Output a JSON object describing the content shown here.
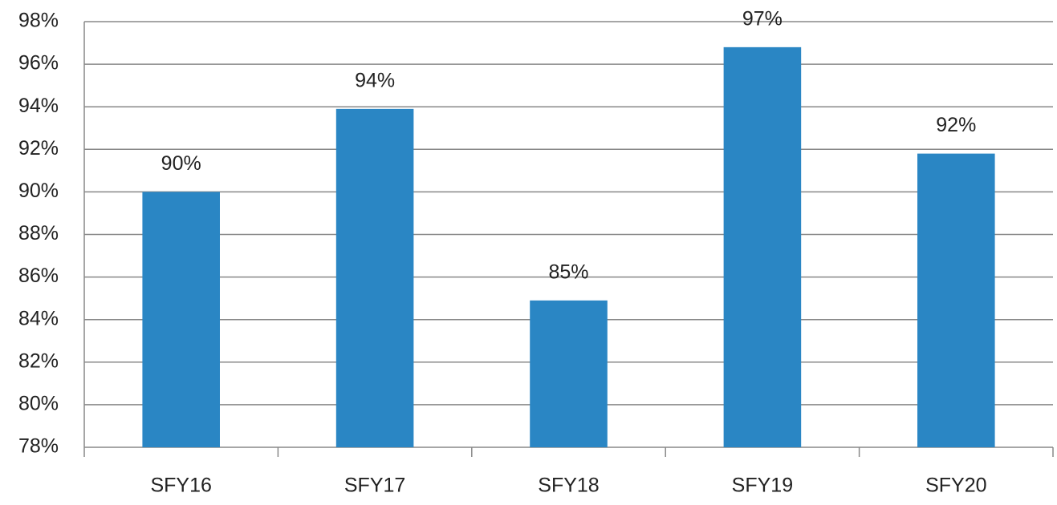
{
  "chart_data": {
    "type": "bar",
    "categories": [
      "SFY16",
      "SFY17",
      "SFY18",
      "SFY19",
      "SFY20"
    ],
    "values": [
      90,
      93.9,
      84.9,
      96.8,
      91.8
    ],
    "value_labels": [
      "90%",
      "94%",
      "85%",
      "97%",
      "92%"
    ],
    "color": "#2a86c4",
    "ylim": [
      78,
      98
    ],
    "yticks": [
      {
        "value": 78,
        "label": "78%"
      },
      {
        "value": 80,
        "label": "80%"
      },
      {
        "value": 82,
        "label": "82%"
      },
      {
        "value": 84,
        "label": "84%"
      },
      {
        "value": 86,
        "label": "86%"
      },
      {
        "value": 88,
        "label": "88%"
      },
      {
        "value": 90,
        "label": "90%"
      },
      {
        "value": 92,
        "label": "92%"
      },
      {
        "value": 94,
        "label": "94%"
      },
      {
        "value": 96,
        "label": "96%"
      },
      {
        "value": 98,
        "label": "98%"
      }
    ],
    "grid": true
  }
}
